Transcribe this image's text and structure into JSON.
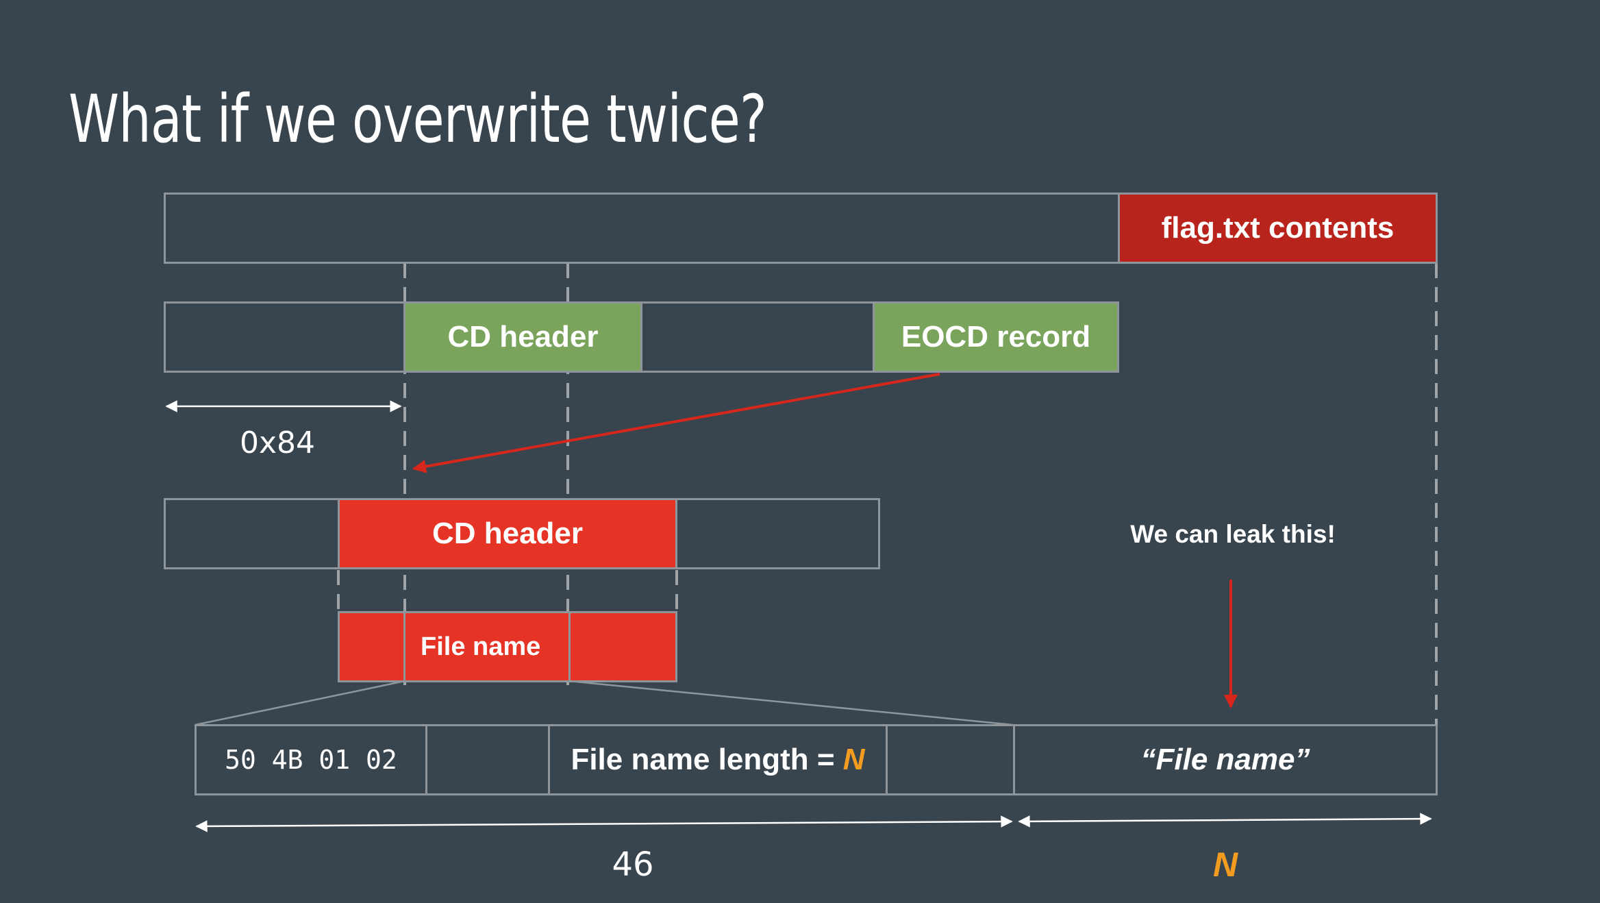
{
  "slide": {
    "title": "What if we overwrite twice?"
  },
  "row1": {
    "flag_label": "flag.txt contents"
  },
  "row2": {
    "cd_header_label": "CD header",
    "eocd_label": "EOCD record",
    "offset_label": "0x84"
  },
  "row3": {
    "cd_header_label": "CD header",
    "leak_label": "We can leak this!"
  },
  "row4": {
    "file_name_label": "File name"
  },
  "row5": {
    "signature": "50 4B 01 02",
    "length_prefix": "File name length = ",
    "length_var": "N",
    "file_name_value": "“File name”"
  },
  "dimensions": {
    "header_size": "46",
    "name_size": "N"
  },
  "colors": {
    "background": "#39454e",
    "green": "#7aa35b",
    "red": "#e53325",
    "dark_red": "#b8241c",
    "orange": "#f39c1f",
    "arrow_red": "#d7261c"
  }
}
